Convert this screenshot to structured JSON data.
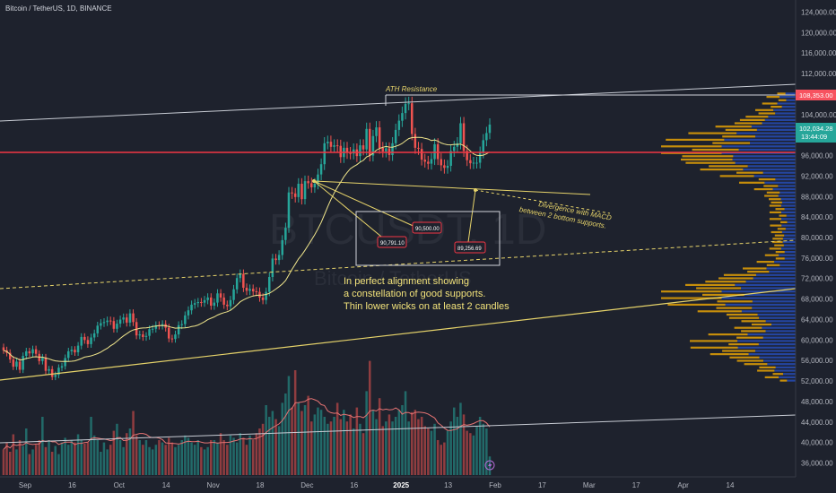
{
  "header": {
    "title": "Bitcoin / TetherUS, 1D, BINANCE"
  },
  "watermark": {
    "symbol": "BTCUSDT, 1D",
    "name": "Bitcoin / TetherUS"
  },
  "chart_data": {
    "type": "candlestick",
    "symbol": "BTCUSDT",
    "interval": "1D",
    "exchange": "BINANCE",
    "ylim": [
      34000,
      126000
    ],
    "y_ticks": [
      "124,000.00",
      "120,000.00",
      "116,000.00",
      "112,000.00",
      "104,000.00",
      "100,000.00",
      "96,000.00",
      "92,000.00",
      "88,000.00",
      "84,000.00",
      "80,000.00",
      "76,000.00",
      "72,000.00",
      "68,000.00",
      "64,000.00",
      "60,000.00",
      "56,000.00",
      "52,000.00",
      "48,000.00",
      "44,000.00",
      "40,000.00",
      "36,000.00"
    ],
    "x_ticks": [
      "Sep",
      "16",
      "Oct",
      "14",
      "Nov",
      "18",
      "Dec",
      "16",
      "2025",
      "13",
      "Feb",
      "17",
      "Mar",
      "17",
      "Apr",
      "14"
    ],
    "price_labels": {
      "ath": "108,353.00",
      "last": "102,034.28",
      "countdown": "13:44:09"
    },
    "candles_close": [
      58000,
      57500,
      56200,
      54800,
      55800,
      54200,
      56900,
      57800,
      57400,
      58200,
      57300,
      55900,
      56600,
      54000,
      54300,
      52800,
      53200,
      54600,
      54900,
      56500,
      57800,
      58100,
      57600,
      58900,
      60600,
      60000,
      59200,
      60500,
      61300,
      62800,
      63300,
      63500,
      63800,
      63700,
      62200,
      63200,
      64000,
      64400,
      63400,
      65200,
      63500,
      60900,
      61100,
      60600,
      60800,
      62100,
      62200,
      62900,
      62800,
      63100,
      62400,
      60300,
      60200,
      61100,
      62900,
      63100,
      64800,
      65800,
      66900,
      67200,
      67400,
      67300,
      67800,
      68300,
      66700,
      67300,
      69100,
      68300,
      66900,
      66600,
      67800,
      69900,
      72100,
      72900,
      70200,
      69600,
      70000,
      69500,
      69400,
      68300,
      67800,
      69400,
      72300,
      75900,
      75600,
      76600,
      79500,
      81900,
      88800,
      88600,
      87900,
      90500,
      87500,
      91000,
      90600,
      89800,
      90500,
      92300,
      94300,
      98400,
      98700,
      97700,
      98000,
      97900,
      95700,
      97500,
      96500,
      96400,
      97200,
      95900,
      98000,
      97200,
      101200,
      96000,
      99800,
      101500,
      97500,
      96800,
      97400,
      96100,
      98400,
      101000,
      102800,
      104300,
      106100,
      106200,
      100200,
      97500,
      97300,
      95200,
      94800,
      94400,
      95300,
      98200,
      95300,
      94100,
      93600,
      94000,
      96900,
      97700,
      98400,
      102300,
      96900,
      95100,
      94500,
      94600,
      94600,
      96600,
      99000,
      100400,
      102034
    ],
    "volumes_relative": [
      0.22,
      0.28,
      0.2,
      0.35,
      0.22,
      0.3,
      0.25,
      0.4,
      0.18,
      0.22,
      0.26,
      0.3,
      0.5,
      0.24,
      0.3,
      0.2,
      0.25,
      0.18,
      0.28,
      0.32,
      0.26,
      0.3,
      0.28,
      0.35,
      0.3,
      0.27,
      0.28,
      0.5,
      0.34,
      0.3,
      0.2,
      0.28,
      0.22,
      0.26,
      0.38,
      0.44,
      0.3,
      0.24,
      0.36,
      0.4,
      0.55,
      0.34,
      0.3,
      0.26,
      0.3,
      0.24,
      0.22,
      0.26,
      0.3,
      0.28,
      0.26,
      0.32,
      0.28,
      0.24,
      0.26,
      0.3,
      0.34,
      0.32,
      0.28,
      0.26,
      0.3,
      0.24,
      0.22,
      0.24,
      0.3,
      0.3,
      0.28,
      0.36,
      0.3,
      0.26,
      0.34,
      0.32,
      0.28,
      0.36,
      0.32,
      0.26,
      0.34,
      0.3,
      0.36,
      0.4,
      0.44,
      0.6,
      0.5,
      0.55,
      0.48,
      0.42,
      0.62,
      0.7,
      0.85,
      0.58,
      0.9,
      0.62,
      0.55,
      0.6,
      0.68,
      0.46,
      0.52,
      0.58,
      0.56,
      0.5,
      0.44,
      0.46,
      0.5,
      0.62,
      0.48,
      0.56,
      0.46,
      0.52,
      0.4,
      0.58,
      0.44,
      0.36,
      0.72,
      0.98,
      0.56,
      0.48,
      0.66,
      0.42,
      0.46,
      0.52,
      0.46,
      0.5,
      0.56,
      0.6,
      0.72,
      0.46,
      0.54,
      0.56,
      0.48,
      0.5,
      0.42,
      0.4,
      0.38,
      0.44,
      0.3,
      0.26,
      0.28,
      0.38,
      0.46,
      0.58,
      0.5,
      0.62,
      0.52,
      0.38,
      0.36,
      0.34,
      0.42,
      0.5,
      0.44,
      0.4,
      0.16
    ],
    "annotations": {
      "ath_resistance": "ATH Resistance",
      "support_1": "90,791.10",
      "support_2": "90,500.00",
      "support_3": "89,256.69",
      "divergence_line1": "Divergence with MACD",
      "divergence_line2": "between 2 bottom supports.",
      "note_line1": "In perfect alignment showing",
      "note_line2": "a constellation of good supports.",
      "note_line3": "Thin lower wicks on at least 2 candles"
    },
    "colors": {
      "background": "#1e222d",
      "up": "#26a69a",
      "down": "#ef5350",
      "ma": "#f0e68c",
      "volume_profile_blue": "#2962ff",
      "volume_profile_orange": "#ffb300",
      "horizontal_level": "#f23645",
      "trendline": "#e6d36a",
      "channel": "#c8ccd4"
    }
  }
}
